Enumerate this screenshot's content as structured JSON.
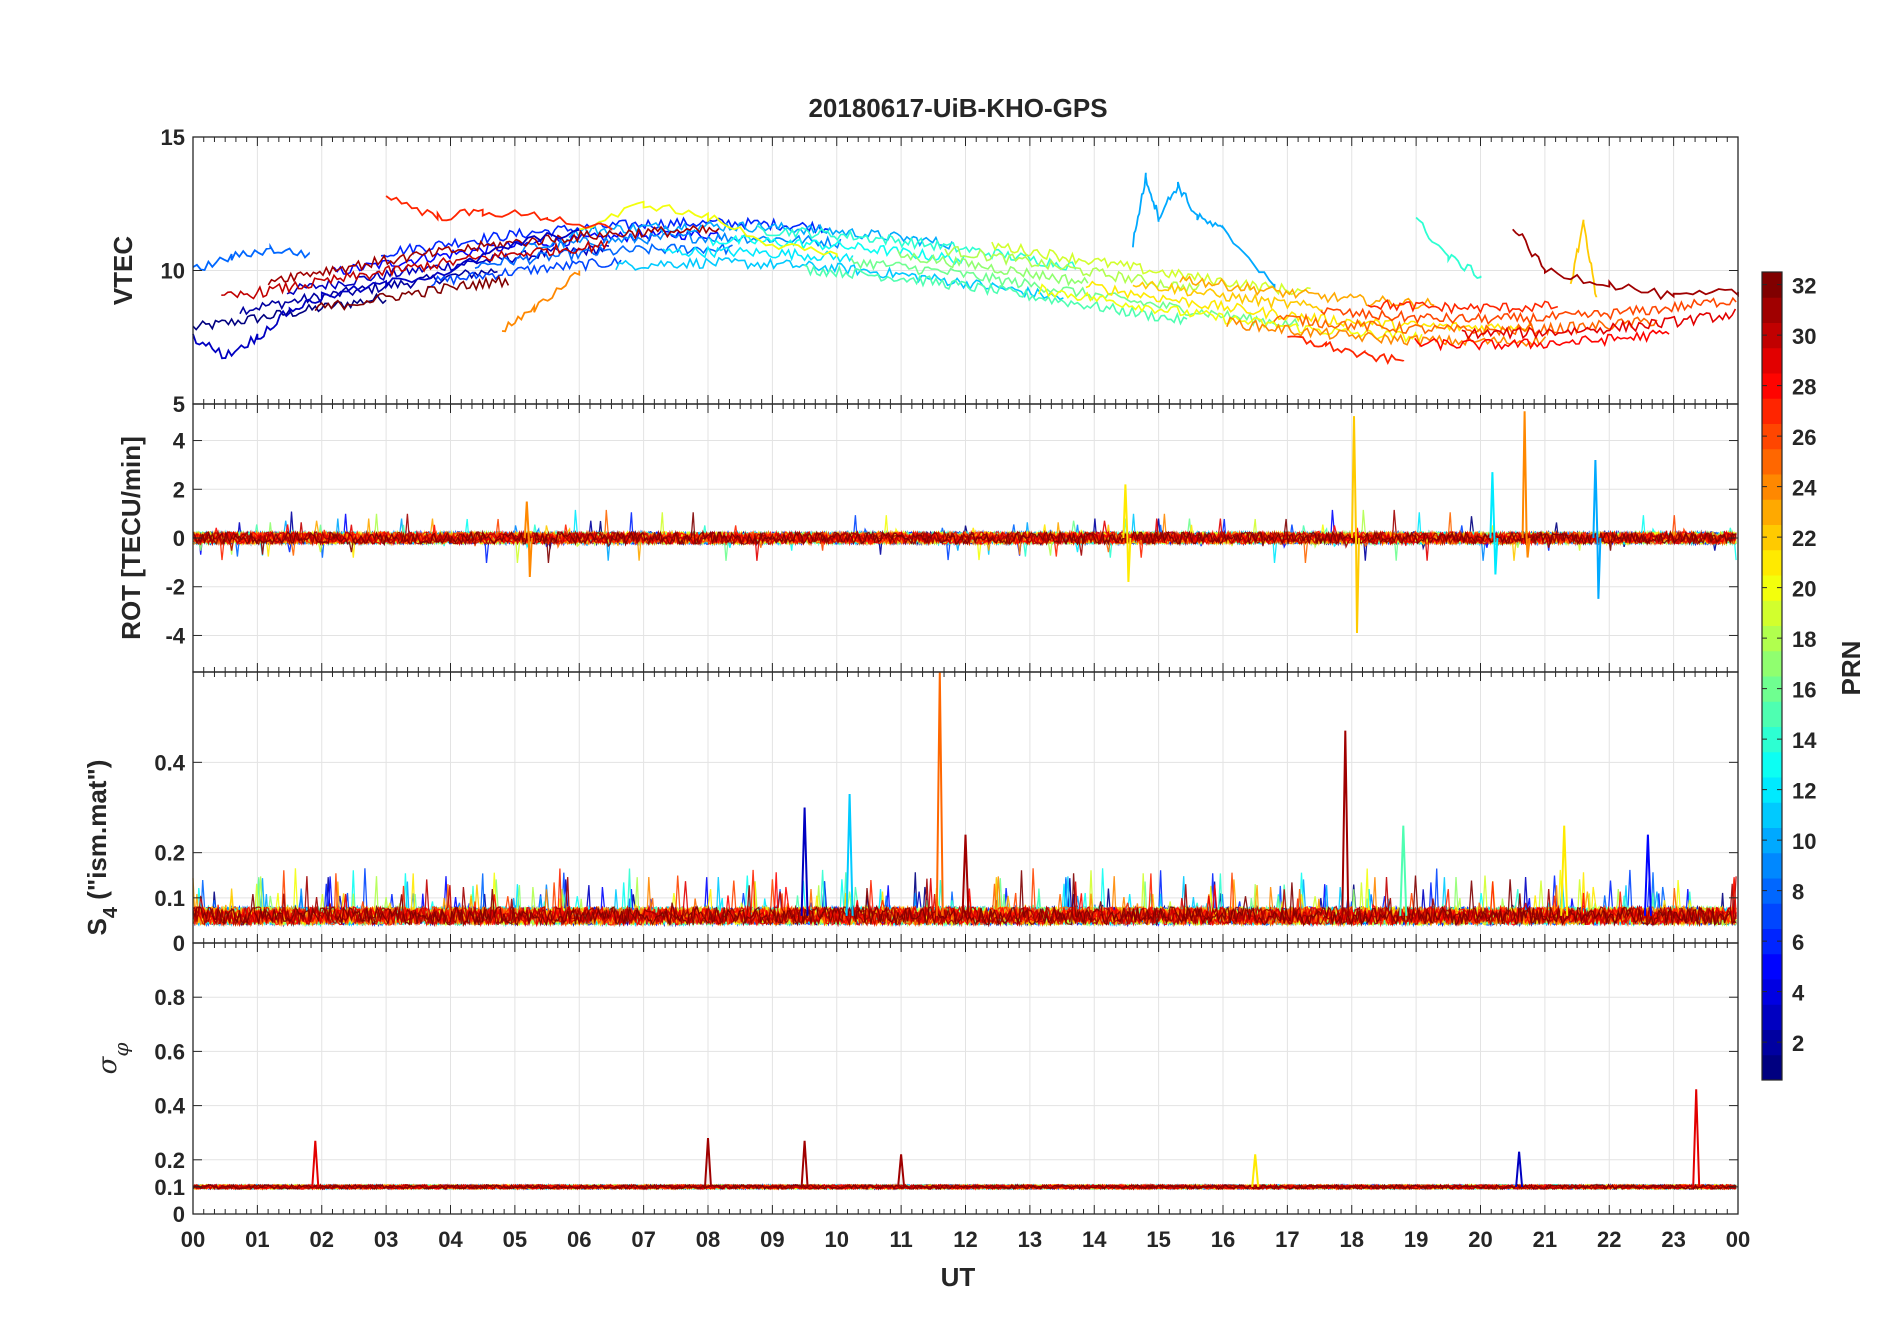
{
  "figure": {
    "title": "20180617-UiB-KHO-GPS",
    "xlabel": "UT"
  },
  "chart_data": [
    {
      "type": "line",
      "panel": "vtec",
      "ylabel": "VTEC",
      "ylim": [
        5,
        15
      ],
      "yticks": [
        5,
        10,
        15
      ],
      "xlim": [
        0,
        24
      ],
      "grid": true,
      "series_note": "Multiple GPS PRN time series colored by PRN",
      "series": [
        {
          "prn": 3,
          "x": [
            0,
            0.5,
            1,
            1.5,
            2,
            3,
            4,
            5,
            6
          ],
          "y": [
            7.5,
            6.8,
            7.5,
            8.5,
            9,
            9.5,
            10,
            11,
            11.5
          ]
        },
        {
          "prn": 8,
          "x": [
            0,
            0.6,
            1.2,
            1.8
          ],
          "y": [
            10,
            10.5,
            10.8,
            10.6
          ]
        },
        {
          "prn": 10,
          "x": [
            14.6,
            14.8,
            15,
            15.3,
            15.6,
            16,
            16.8
          ],
          "y": [
            11,
            13.5,
            12,
            13.2,
            12,
            11.5,
            9.5
          ]
        },
        {
          "prn": 14,
          "x": [
            19,
            19.5,
            20
          ],
          "y": [
            11.9,
            10.5,
            9.8
          ]
        },
        {
          "prn": 20,
          "x": [
            6,
            7,
            8,
            9,
            10
          ],
          "y": [
            11.5,
            12.5,
            12,
            11,
            10.5
          ]
        },
        {
          "prn": 22,
          "x": [
            21.4,
            21.6,
            21.8
          ],
          "y": [
            9.5,
            11.8,
            9
          ]
        },
        {
          "prn": 24,
          "x": [
            4.8,
            5.3,
            6
          ],
          "y": [
            7.8,
            8.5,
            10
          ]
        },
        {
          "prn": 27,
          "x": [
            3,
            3.8,
            4.5,
            5.5,
            6.5
          ],
          "y": [
            12.8,
            12,
            12.2,
            12,
            11.5
          ]
        },
        {
          "prn": 27,
          "x": [
            17,
            17.6,
            18.2,
            18.8
          ],
          "y": [
            7.5,
            7.2,
            6.8,
            6.6
          ]
        },
        {
          "prn": 31,
          "x": [
            20.5,
            21,
            22,
            23,
            24
          ],
          "y": [
            11.7,
            10,
            9.5,
            9,
            9.2
          ]
        }
      ]
    },
    {
      "type": "line",
      "panel": "rot",
      "ylabel": "ROT [TECU/min]",
      "ylim": [
        -5.5,
        5.5
      ],
      "yticks": [
        -4,
        -2,
        0,
        2,
        4
      ],
      "xlim": [
        0,
        24
      ],
      "grid": true,
      "spikes": [
        {
          "prn": 22,
          "x": 18.05,
          "y": [
            5,
            -3.9
          ]
        },
        {
          "prn": 24,
          "x": 20.7,
          "y": [
            5.2,
            -0.8
          ]
        },
        {
          "prn": 10,
          "x": 21.8,
          "y": [
            3.2,
            -2.5
          ]
        },
        {
          "prn": 12,
          "x": 20.2,
          "y": [
            2.7,
            -1.5
          ]
        },
        {
          "prn": 21,
          "x": 14.5,
          "y": [
            2.2,
            -1.8
          ]
        },
        {
          "prn": 24,
          "x": 5.2,
          "y": [
            1.5,
            -1.6
          ]
        }
      ]
    },
    {
      "type": "line",
      "panel": "s4",
      "ylabel": "S_4 (\"ism.mat\")",
      "ylim": [
        0,
        0.6
      ],
      "yticks": [
        0,
        0.1,
        0.2,
        0.4
      ],
      "xlim": [
        0,
        24
      ],
      "grid": true,
      "spikes": [
        {
          "prn": 25,
          "x": 11.6,
          "y": 0.6
        },
        {
          "prn": 31,
          "x": 17.9,
          "y": 0.47
        },
        {
          "prn": 11,
          "x": 10.2,
          "y": 0.33
        },
        {
          "prn": 3,
          "x": 9.5,
          "y": 0.3
        },
        {
          "prn": 15,
          "x": 18.8,
          "y": 0.26
        },
        {
          "prn": 21,
          "x": 21.3,
          "y": 0.26
        },
        {
          "prn": 5,
          "x": 22.6,
          "y": 0.24
        },
        {
          "prn": 31,
          "x": 12,
          "y": 0.24
        }
      ]
    },
    {
      "type": "line",
      "panel": "sigma_phi",
      "ylabel_symbol": "σ",
      "ylabel_sub": "φ",
      "ylim": [
        0,
        1
      ],
      "yticks": [
        0,
        0.1,
        0.2,
        0.4,
        0.6,
        0.8
      ],
      "xlim": [
        0,
        24
      ],
      "grid": true,
      "spikes": [
        {
          "prn": 29,
          "x": 23.35,
          "y": 0.46
        },
        {
          "prn": 31,
          "x": 8,
          "y": 0.28
        },
        {
          "prn": 29,
          "x": 1.9,
          "y": 0.27
        },
        {
          "prn": 31,
          "x": 9.5,
          "y": 0.27
        },
        {
          "prn": 3,
          "x": 20.6,
          "y": 0.23
        },
        {
          "prn": 31,
          "x": 11,
          "y": 0.22
        },
        {
          "prn": 21,
          "x": 16.5,
          "y": 0.22
        }
      ]
    }
  ],
  "xaxis": {
    "ticks": [
      "00",
      "01",
      "02",
      "03",
      "04",
      "05",
      "06",
      "07",
      "08",
      "09",
      "10",
      "11",
      "12",
      "13",
      "14",
      "15",
      "16",
      "17",
      "18",
      "19",
      "20",
      "21",
      "22",
      "23",
      "00"
    ]
  },
  "colorbar": {
    "label": "PRN",
    "range": [
      1,
      32
    ],
    "colormap": "jet",
    "ticks": [
      "2",
      "4",
      "6",
      "8",
      "10",
      "12",
      "14",
      "16",
      "18",
      "20",
      "22",
      "24",
      "26",
      "28",
      "30",
      "32"
    ]
  }
}
